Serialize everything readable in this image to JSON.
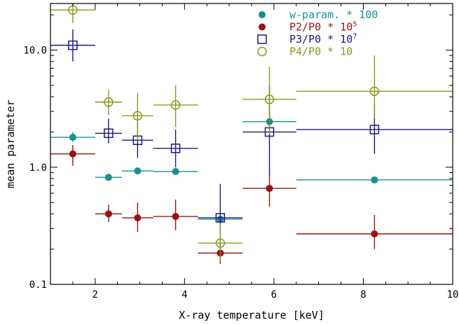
{
  "chart_data": {
    "type": "scatter",
    "xlabel": "X-ray temperature [keV]",
    "ylabel": "mean parameter",
    "xlim": [
      1,
      10
    ],
    "ylim": [
      0.1,
      25
    ],
    "yscale": "log",
    "x_ticks": [
      2,
      4,
      6,
      8,
      10
    ],
    "y_ticks": [
      0.1,
      1.0,
      10.0
    ],
    "y_tick_labels": [
      "0.1",
      "1.0",
      "10.0"
    ],
    "legend_position": "top-right",
    "series": [
      {
        "name": "w-param. * 100",
        "marker": "filled-circle",
        "color": "#1a9090",
        "points": [
          {
            "x": 1.5,
            "y": 1.8,
            "x_lo": 1.0,
            "x_hi": 2.0,
            "y_lo": 1.65,
            "y_hi": 2.0
          },
          {
            "x": 2.3,
            "y": 0.82,
            "x_lo": 2.0,
            "x_hi": 2.6,
            "y_lo": 0.79,
            "y_hi": 0.85
          },
          {
            "x": 2.95,
            "y": 0.93,
            "x_lo": 2.6,
            "x_hi": 3.3,
            "y_lo": 0.9,
            "y_hi": 0.96
          },
          {
            "x": 3.8,
            "y": 0.92,
            "x_lo": 3.3,
            "x_hi": 4.3,
            "y_lo": 0.88,
            "y_hi": 0.96
          },
          {
            "x": 4.8,
            "y": 0.36,
            "x_lo": 4.3,
            "x_hi": 5.3,
            "y_lo": 0.35,
            "y_hi": 0.37
          },
          {
            "x": 5.9,
            "y": 2.45,
            "x_lo": 5.3,
            "x_hi": 6.5,
            "y_lo": 2.3,
            "y_hi": 2.6
          },
          {
            "x": 8.25,
            "y": 0.78,
            "x_lo": 6.5,
            "x_hi": 10.0,
            "y_lo": 0.76,
            "y_hi": 0.8
          }
        ]
      },
      {
        "name": "P2/P0 * 10^5",
        "marker": "filled-circle",
        "color": "#9b1010",
        "points": [
          {
            "x": 1.5,
            "y": 1.3,
            "x_lo": 1.0,
            "x_hi": 2.0,
            "y_lo": 1.03,
            "y_hi": 1.55
          },
          {
            "x": 2.3,
            "y": 0.4,
            "x_lo": 2.0,
            "x_hi": 2.6,
            "y_lo": 0.34,
            "y_hi": 0.48
          },
          {
            "x": 2.95,
            "y": 0.37,
            "x_lo": 2.6,
            "x_hi": 3.3,
            "y_lo": 0.28,
            "y_hi": 0.5
          },
          {
            "x": 3.8,
            "y": 0.38,
            "x_lo": 3.3,
            "x_hi": 4.3,
            "y_lo": 0.29,
            "y_hi": 0.53
          },
          {
            "x": 4.8,
            "y": 0.185,
            "x_lo": 4.3,
            "x_hi": 5.3,
            "y_lo": 0.15,
            "y_hi": 0.22
          },
          {
            "x": 5.9,
            "y": 0.66,
            "x_lo": 5.3,
            "x_hi": 6.5,
            "y_lo": 0.46,
            "y_hi": 0.86
          },
          {
            "x": 8.25,
            "y": 0.27,
            "x_lo": 6.5,
            "x_hi": 10.0,
            "y_lo": 0.2,
            "y_hi": 0.39
          }
        ]
      },
      {
        "name": "P3/P0 * 10^7",
        "marker": "open-square",
        "color": "#1a1a80",
        "points": [
          {
            "x": 1.5,
            "y": 11.0,
            "x_lo": 1.0,
            "x_hi": 2.0,
            "y_lo": 8.0,
            "y_hi": 15.0
          },
          {
            "x": 2.3,
            "y": 1.95,
            "x_lo": 2.0,
            "x_hi": 2.6,
            "y_lo": 1.6,
            "y_hi": 2.6
          },
          {
            "x": 2.95,
            "y": 1.7,
            "x_lo": 2.6,
            "x_hi": 3.3,
            "y_lo": 1.2,
            "y_hi": 2.45
          },
          {
            "x": 3.8,
            "y": 1.45,
            "x_lo": 3.3,
            "x_hi": 4.3,
            "y_lo": 1.0,
            "y_hi": 2.1
          },
          {
            "x": 4.8,
            "y": 0.37,
            "x_lo": 4.3,
            "x_hi": 5.3,
            "y_lo": 0.18,
            "y_hi": 0.72
          },
          {
            "x": 5.9,
            "y": 2.0,
            "x_lo": 5.3,
            "x_hi": 6.5,
            "y_lo": 0.85,
            "y_hi": 5.0
          },
          {
            "x": 8.25,
            "y": 2.1,
            "x_lo": 6.5,
            "x_hi": 10.0,
            "y_lo": 1.3,
            "y_hi": 3.5
          }
        ]
      },
      {
        "name": "P4/P0 * 10",
        "marker": "open-circle",
        "color": "#8a9a1a",
        "points": [
          {
            "x": 1.5,
            "y": 22.0,
            "x_lo": 1.0,
            "x_hi": 2.0,
            "y_lo": 17.0,
            "y_hi": 25.0
          },
          {
            "x": 2.3,
            "y": 3.6,
            "x_lo": 2.0,
            "x_hi": 2.6,
            "y_lo": 2.8,
            "y_hi": 4.6
          },
          {
            "x": 2.95,
            "y": 2.75,
            "x_lo": 2.6,
            "x_hi": 3.3,
            "y_lo": 1.7,
            "y_hi": 4.3
          },
          {
            "x": 3.8,
            "y": 3.4,
            "x_lo": 3.3,
            "x_hi": 4.3,
            "y_lo": 2.2,
            "y_hi": 5.0
          },
          {
            "x": 4.8,
            "y": 0.225,
            "x_lo": 4.3,
            "x_hi": 5.3,
            "y_lo": 0.16,
            "y_hi": 0.33
          },
          {
            "x": 5.9,
            "y": 3.8,
            "x_lo": 5.3,
            "x_hi": 6.5,
            "y_lo": 1.9,
            "y_hi": 7.2
          },
          {
            "x": 8.25,
            "y": 4.45,
            "x_lo": 6.5,
            "x_hi": 10.0,
            "y_lo": 2.6,
            "y_hi": 9.0
          }
        ]
      }
    ]
  },
  "legend": [
    {
      "prefix": "w-param. * 100",
      "sup": "",
      "suffix": ""
    },
    {
      "prefix": "P2/P0 * 10",
      "sup": "5",
      "suffix": ""
    },
    {
      "prefix": "P3/P0 * 10",
      "sup": "7",
      "suffix": ""
    },
    {
      "prefix": "P4/P0 * 10",
      "sup": "",
      "suffix": ""
    }
  ]
}
